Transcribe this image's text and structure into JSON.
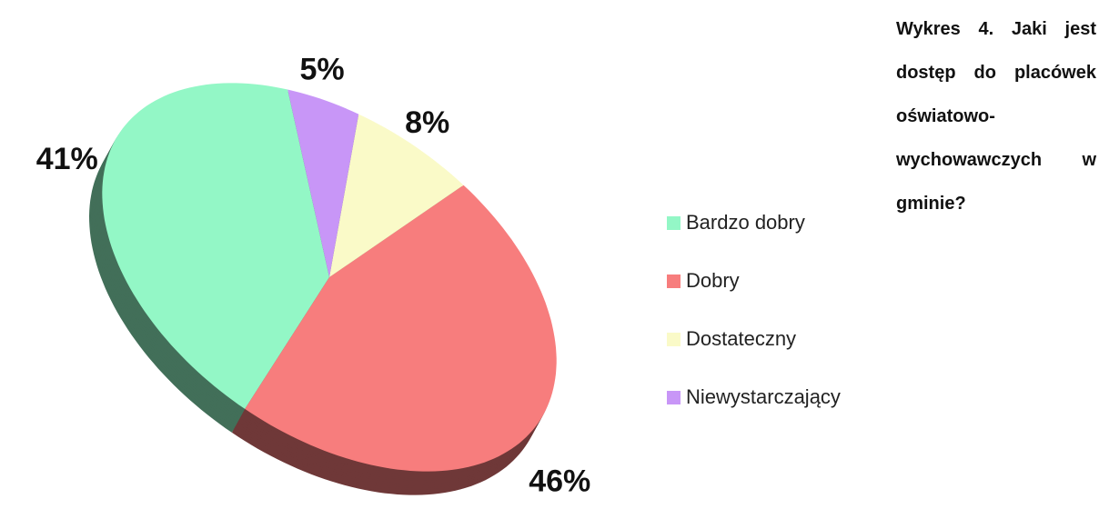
{
  "chart_data": {
    "type": "pie",
    "title": "Wykres 4. Jaki jest dostęp do placówek oświatowo-wychowawczych w gminie?",
    "categories": [
      "Bardzo dobry",
      "Dobry",
      "Dostateczny",
      "Niewystarczający"
    ],
    "values": [
      41,
      46,
      8,
      5
    ],
    "value_labels": [
      "41%",
      "46%",
      "8%",
      "5%"
    ],
    "colors": [
      "#93f7c6",
      "#f77d7d",
      "#fafac8",
      "#c896f7"
    ],
    "legend": "right"
  }
}
